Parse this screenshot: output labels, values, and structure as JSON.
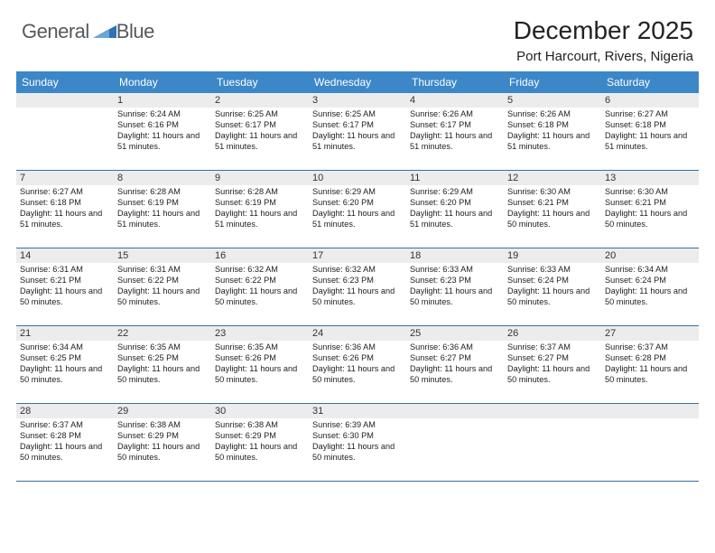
{
  "brand": {
    "name_part1": "General",
    "name_part2": "Blue"
  },
  "header": {
    "month_title": "December 2025",
    "location": "Port Harcourt, Rivers, Nigeria"
  },
  "colors": {
    "header_blue": "#3b87c8",
    "cell_border": "#3b6fa0",
    "daybar_bg": "#ececec",
    "logo_gray": "#555a5f",
    "logo_blue": "#2f72b5"
  },
  "days_of_week": [
    "Sunday",
    "Monday",
    "Tuesday",
    "Wednesday",
    "Thursday",
    "Friday",
    "Saturday"
  ],
  "leading_blanks": 1,
  "trailing_blanks": 3,
  "days": [
    {
      "n": 1,
      "sr": "6:24 AM",
      "ss": "6:16 PM",
      "dl": "11 hours and 51 minutes."
    },
    {
      "n": 2,
      "sr": "6:25 AM",
      "ss": "6:17 PM",
      "dl": "11 hours and 51 minutes."
    },
    {
      "n": 3,
      "sr": "6:25 AM",
      "ss": "6:17 PM",
      "dl": "11 hours and 51 minutes."
    },
    {
      "n": 4,
      "sr": "6:26 AM",
      "ss": "6:17 PM",
      "dl": "11 hours and 51 minutes."
    },
    {
      "n": 5,
      "sr": "6:26 AM",
      "ss": "6:18 PM",
      "dl": "11 hours and 51 minutes."
    },
    {
      "n": 6,
      "sr": "6:27 AM",
      "ss": "6:18 PM",
      "dl": "11 hours and 51 minutes."
    },
    {
      "n": 7,
      "sr": "6:27 AM",
      "ss": "6:18 PM",
      "dl": "11 hours and 51 minutes."
    },
    {
      "n": 8,
      "sr": "6:28 AM",
      "ss": "6:19 PM",
      "dl": "11 hours and 51 minutes."
    },
    {
      "n": 9,
      "sr": "6:28 AM",
      "ss": "6:19 PM",
      "dl": "11 hours and 51 minutes."
    },
    {
      "n": 10,
      "sr": "6:29 AM",
      "ss": "6:20 PM",
      "dl": "11 hours and 51 minutes."
    },
    {
      "n": 11,
      "sr": "6:29 AM",
      "ss": "6:20 PM",
      "dl": "11 hours and 51 minutes."
    },
    {
      "n": 12,
      "sr": "6:30 AM",
      "ss": "6:21 PM",
      "dl": "11 hours and 50 minutes."
    },
    {
      "n": 13,
      "sr": "6:30 AM",
      "ss": "6:21 PM",
      "dl": "11 hours and 50 minutes."
    },
    {
      "n": 14,
      "sr": "6:31 AM",
      "ss": "6:21 PM",
      "dl": "11 hours and 50 minutes."
    },
    {
      "n": 15,
      "sr": "6:31 AM",
      "ss": "6:22 PM",
      "dl": "11 hours and 50 minutes."
    },
    {
      "n": 16,
      "sr": "6:32 AM",
      "ss": "6:22 PM",
      "dl": "11 hours and 50 minutes."
    },
    {
      "n": 17,
      "sr": "6:32 AM",
      "ss": "6:23 PM",
      "dl": "11 hours and 50 minutes."
    },
    {
      "n": 18,
      "sr": "6:33 AM",
      "ss": "6:23 PM",
      "dl": "11 hours and 50 minutes."
    },
    {
      "n": 19,
      "sr": "6:33 AM",
      "ss": "6:24 PM",
      "dl": "11 hours and 50 minutes."
    },
    {
      "n": 20,
      "sr": "6:34 AM",
      "ss": "6:24 PM",
      "dl": "11 hours and 50 minutes."
    },
    {
      "n": 21,
      "sr": "6:34 AM",
      "ss": "6:25 PM",
      "dl": "11 hours and 50 minutes."
    },
    {
      "n": 22,
      "sr": "6:35 AM",
      "ss": "6:25 PM",
      "dl": "11 hours and 50 minutes."
    },
    {
      "n": 23,
      "sr": "6:35 AM",
      "ss": "6:26 PM",
      "dl": "11 hours and 50 minutes."
    },
    {
      "n": 24,
      "sr": "6:36 AM",
      "ss": "6:26 PM",
      "dl": "11 hours and 50 minutes."
    },
    {
      "n": 25,
      "sr": "6:36 AM",
      "ss": "6:27 PM",
      "dl": "11 hours and 50 minutes."
    },
    {
      "n": 26,
      "sr": "6:37 AM",
      "ss": "6:27 PM",
      "dl": "11 hours and 50 minutes."
    },
    {
      "n": 27,
      "sr": "6:37 AM",
      "ss": "6:28 PM",
      "dl": "11 hours and 50 minutes."
    },
    {
      "n": 28,
      "sr": "6:37 AM",
      "ss": "6:28 PM",
      "dl": "11 hours and 50 minutes."
    },
    {
      "n": 29,
      "sr": "6:38 AM",
      "ss": "6:29 PM",
      "dl": "11 hours and 50 minutes."
    },
    {
      "n": 30,
      "sr": "6:38 AM",
      "ss": "6:29 PM",
      "dl": "11 hours and 50 minutes."
    },
    {
      "n": 31,
      "sr": "6:39 AM",
      "ss": "6:30 PM",
      "dl": "11 hours and 50 minutes."
    }
  ],
  "labels": {
    "sunrise_prefix": "Sunrise: ",
    "sunset_prefix": "Sunset: ",
    "daylight_prefix": "Daylight: "
  }
}
